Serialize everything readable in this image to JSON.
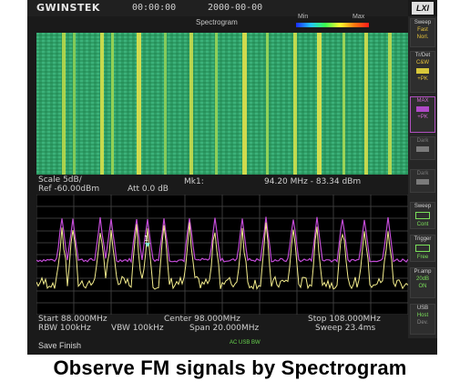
{
  "device": {
    "logo": "GWINSTEK",
    "time": "00:00:00",
    "date": "2000-00-00",
    "badge": "LXI"
  },
  "spectrogram": {
    "title": "Spectrogram",
    "min_label": "Min",
    "max_label": "Max"
  },
  "readout": {
    "scale": "Scale 5dB/",
    "ref": "Ref -60.00dBm",
    "att": "Att 0.0 dB",
    "marker_label": "Mk1:",
    "marker_value": "94.20 MHz - 83.34 dBm",
    "marker_number": "1"
  },
  "footer": {
    "start": "Start 88.000MHz",
    "center": "Center 98.000MHz",
    "stop": "Stop 108.000MHz",
    "rbw": "RBW 100kHz",
    "vbw": "VBW 100kHz",
    "span": "Span 20.000MHz",
    "sweep": "Sweep 23.4ms",
    "status_line": "Save Finish",
    "status_icons": [
      "AC",
      "USB",
      "BW"
    ]
  },
  "sidebar": {
    "sweep_label": "Sweep",
    "sweep_fast": "Fast",
    "sweep_norm": "Norl.",
    "trdet_label": "Tr/Det",
    "trace1": "C&W",
    "trace1_sub": "+PK",
    "trace2": "MAX",
    "trace2_sub": "+PK",
    "dark1": "Dark",
    "dark2": "Dark",
    "sweep2_label": "Sweep",
    "cont": "Cont",
    "trigger_label": "Trigger",
    "free": "Free",
    "preamp_label": "Pr.amp",
    "preamp_value": "20dB",
    "preamp_state": "ON",
    "usb_label": "USB",
    "host": "Host",
    "dev": "Dev."
  },
  "caption": "Observe FM signals by Spectrogram",
  "colors": {
    "trace_yellow": "#f3ec8c",
    "trace_magenta": "#c24bd6",
    "grid": "#3a3a3a",
    "spectrogram_base": "#2aa566",
    "status_green": "#7adf5a"
  }
}
